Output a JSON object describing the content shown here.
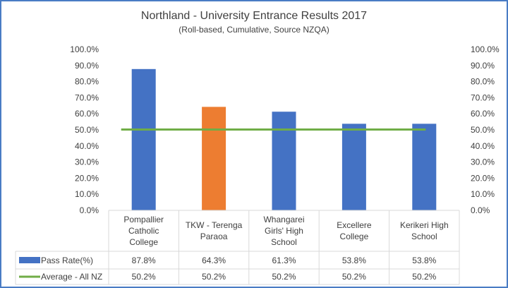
{
  "chart_data": {
    "type": "bar",
    "title": "Northland - University Entrance Results 2017",
    "subtitle": "(Roll-based, Cumulative, Source NZQA)",
    "categories": [
      [
        "Pompallier",
        "Catholic",
        "College"
      ],
      [
        "TKW - Terenga",
        "Paraoa"
      ],
      [
        "Whangarei",
        "Girls' High",
        "School"
      ],
      [
        "Excellere",
        "College"
      ],
      [
        "Kerikeri High",
        "School"
      ]
    ],
    "ylim": [
      0,
      100
    ],
    "y_ticks": [
      "0.0%",
      "10.0%",
      "20.0%",
      "30.0%",
      "40.0%",
      "50.0%",
      "60.0%",
      "70.0%",
      "80.0%",
      "90.0%",
      "100.0%"
    ],
    "grid": false,
    "series": [
      {
        "name": "Pass Rate(%)",
        "kind": "bar",
        "values": [
          87.8,
          64.3,
          61.3,
          53.8,
          53.8
        ],
        "labels": [
          "87.8%",
          "64.3%",
          "61.3%",
          "53.8%",
          "53.8%"
        ],
        "color": "#4472c4",
        "highlight_color": "#ed7d31",
        "highlight_index": 1
      },
      {
        "name": "Average - All NZ",
        "kind": "line",
        "values": [
          50.2,
          50.2,
          50.2,
          50.2,
          50.2
        ],
        "labels": [
          "50.2%",
          "50.2%",
          "50.2%",
          "50.2%",
          "50.2%"
        ],
        "color": "#70ad47"
      }
    ],
    "legend": "data-table"
  }
}
